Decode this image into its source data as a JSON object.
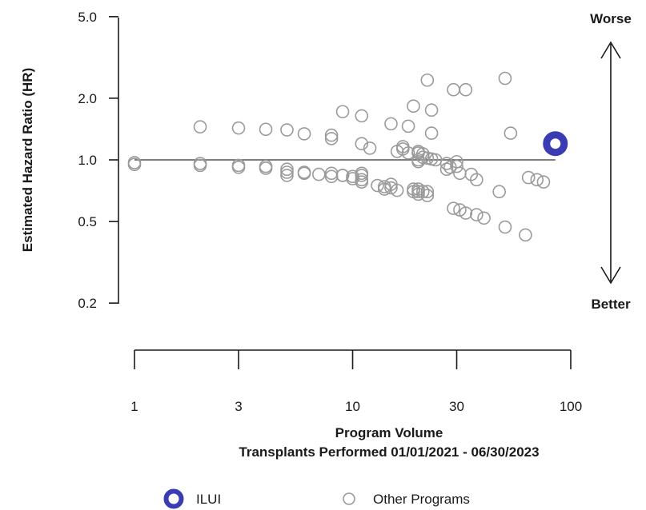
{
  "chart_data": {
    "type": "scatter",
    "xlabel": "Program Volume",
    "xlabel_sub": "Transplants Performed 01/01/2021 - 06/30/2023",
    "ylabel": "Estimated Hazard Ratio (HR)",
    "x_scale": "log",
    "y_scale": "log",
    "xlim": [
      1,
      100
    ],
    "ylim": [
      0.2,
      5.0
    ],
    "x_ticks": [
      1,
      3,
      10,
      30,
      100
    ],
    "x_tick_labels": [
      "1",
      "3",
      "10",
      "30",
      "100"
    ],
    "y_ticks": [
      0.2,
      0.5,
      1.0,
      2.0,
      5.0
    ],
    "y_tick_labels": [
      "0.2",
      "0.5",
      "1.0",
      "2.0",
      "5.0"
    ],
    "reference_line": 1.0,
    "direction_labels": {
      "top": "Worse",
      "bottom": "Better"
    },
    "legend": [
      {
        "label": "ILUI",
        "color": "#3b3bb3",
        "style": "filled-ring"
      },
      {
        "label": "Other Programs",
        "color": "#9a9a9a",
        "style": "hollow"
      }
    ],
    "series": [
      {
        "name": "ILUI",
        "color": "#3b3bb3",
        "points": [
          [
            85,
            1.2
          ]
        ]
      },
      {
        "name": "Other Programs",
        "color": "#9a9a9a",
        "points": [
          [
            1,
            0.97
          ],
          [
            1,
            0.95
          ],
          [
            2,
            1.45
          ],
          [
            2,
            0.96
          ],
          [
            2,
            0.94
          ],
          [
            3,
            1.43
          ],
          [
            3,
            0.94
          ],
          [
            3,
            0.92
          ],
          [
            4,
            1.41
          ],
          [
            4,
            0.93
          ],
          [
            4,
            0.91
          ],
          [
            5,
            1.4
          ],
          [
            5,
            0.9
          ],
          [
            5,
            0.87
          ],
          [
            5,
            0.84
          ],
          [
            6,
            1.34
          ],
          [
            6,
            0.87
          ],
          [
            6,
            0.86
          ],
          [
            7,
            0.85
          ],
          [
            8,
            1.32
          ],
          [
            8,
            1.27
          ],
          [
            8,
            0.86
          ],
          [
            8,
            0.83
          ],
          [
            9,
            1.72
          ],
          [
            9,
            0.84
          ],
          [
            9,
            0.84
          ],
          [
            10,
            0.83
          ],
          [
            10,
            0.81
          ],
          [
            11,
            1.64
          ],
          [
            11,
            1.2
          ],
          [
            11,
            0.86
          ],
          [
            11,
            0.84
          ],
          [
            11,
            0.8
          ],
          [
            11,
            0.78
          ],
          [
            12,
            1.14
          ],
          [
            13,
            0.75
          ],
          [
            14,
            0.74
          ],
          [
            14,
            0.72
          ],
          [
            15,
            1.5
          ],
          [
            15,
            0.76
          ],
          [
            15,
            0.73
          ],
          [
            16,
            1.1
          ],
          [
            16,
            0.71
          ],
          [
            17,
            1.16
          ],
          [
            17,
            1.13
          ],
          [
            18,
            1.08
          ],
          [
            18,
            1.46
          ],
          [
            19,
            1.83
          ],
          [
            19,
            0.72
          ],
          [
            19,
            0.7
          ],
          [
            20,
            1.1
          ],
          [
            20,
            1.08
          ],
          [
            20,
            1.0
          ],
          [
            20,
            0.98
          ],
          [
            20,
            0.72
          ],
          [
            20,
            0.7
          ],
          [
            20,
            0.68
          ],
          [
            21,
            1.07
          ],
          [
            21,
            1.03
          ],
          [
            21,
            0.7
          ],
          [
            22,
            2.45
          ],
          [
            22,
            1.02
          ],
          [
            22,
            0.7
          ],
          [
            22,
            0.67
          ],
          [
            23,
            1.75
          ],
          [
            23,
            1.35
          ],
          [
            23,
            1.01
          ],
          [
            24,
            1.0
          ],
          [
            27,
            0.96
          ],
          [
            27,
            0.9
          ],
          [
            28,
            0.92
          ],
          [
            29,
            2.2
          ],
          [
            29,
            0.58
          ],
          [
            30,
            0.98
          ],
          [
            30,
            0.93
          ],
          [
            31,
            0.86
          ],
          [
            31,
            0.57
          ],
          [
            33,
            2.2
          ],
          [
            33,
            0.55
          ],
          [
            35,
            0.85
          ],
          [
            37,
            0.8
          ],
          [
            37,
            0.54
          ],
          [
            40,
            0.52
          ],
          [
            47,
            0.7
          ],
          [
            50,
            2.5
          ],
          [
            50,
            0.47
          ],
          [
            53,
            1.35
          ],
          [
            62,
            0.43
          ],
          [
            64,
            0.82
          ],
          [
            70,
            0.8
          ],
          [
            75,
            0.78
          ]
        ]
      }
    ]
  }
}
